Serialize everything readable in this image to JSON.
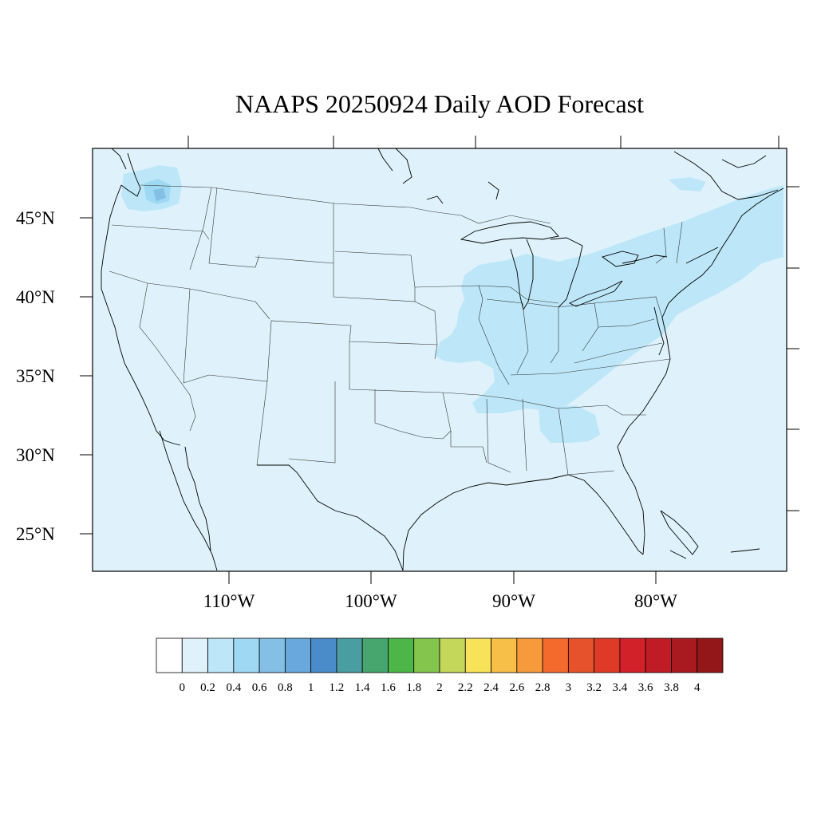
{
  "title": "NAAPS 20250924 Daily AOD Forecast",
  "map": {
    "background_color": "#dff2fb",
    "lat_labels": [
      "45°N",
      "40°N",
      "35°N",
      "30°N",
      "25°N"
    ],
    "lon_labels": [
      "110°W",
      "100°W",
      "90°W",
      "80°W"
    ]
  },
  "colorbar": {
    "labels": [
      "0",
      "0.2",
      "0.4",
      "0.6",
      "0.8",
      "1",
      "1.2",
      "1.4",
      "1.6",
      "1.8",
      "2",
      "2.2",
      "2.4",
      "2.6",
      "2.8",
      "3",
      "3.2",
      "3.4",
      "3.6",
      "3.8",
      "4"
    ],
    "colors": [
      "#ffffff",
      "#dff2fb",
      "#bde7f8",
      "#9fd8f3",
      "#84bfe5",
      "#69a8dc",
      "#4a8cc9",
      "#4a9da0",
      "#46a66e",
      "#4cb748",
      "#84c54e",
      "#c4d75a",
      "#f8e25a",
      "#f8bf48",
      "#f79a3c",
      "#f46a2c",
      "#e6522c",
      "#de3a27",
      "#d22129",
      "#bf1c25",
      "#a81a1f",
      "#931619"
    ]
  },
  "aod_regions": [
    {
      "area": "Washington plume",
      "level": "0.4-0.6"
    },
    {
      "area": "Midwest to Northeast band",
      "level": "0.2-0.4"
    }
  ]
}
